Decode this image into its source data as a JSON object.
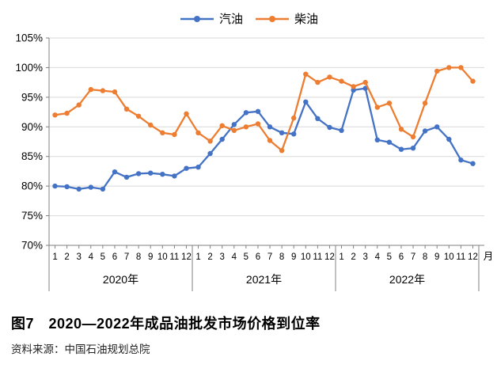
{
  "legend": {
    "items": [
      {
        "label": "汽油",
        "key": "gasoline"
      },
      {
        "label": "柴油",
        "key": "diesel"
      }
    ]
  },
  "chart_data": {
    "type": "line",
    "title": "图7　2020—2022年成品油批发市场价格到位率",
    "xlabel_unit": "月",
    "ylabel": "",
    "ylim": [
      70,
      105
    ],
    "y_step": 5,
    "grid": true,
    "legend_position": "top",
    "y_axis_tick_labels": [
      "105%",
      "100%",
      "95%",
      "90%",
      "85%",
      "80%",
      "75%",
      "70%"
    ],
    "x_axis": {
      "month_labels": [
        "1",
        "2",
        "3",
        "4",
        "5",
        "6",
        "7",
        "8",
        "9",
        "10",
        "11",
        "12"
      ],
      "year_labels": [
        "2020年",
        "2021年",
        "2022年"
      ],
      "unit_label": "月"
    },
    "categories": [
      "2020-1",
      "2020-2",
      "2020-3",
      "2020-4",
      "2020-5",
      "2020-6",
      "2020-7",
      "2020-8",
      "2020-9",
      "2020-10",
      "2020-11",
      "2020-12",
      "2021-1",
      "2021-2",
      "2021-3",
      "2021-4",
      "2021-5",
      "2021-6",
      "2021-7",
      "2021-8",
      "2021-9",
      "2021-10",
      "2021-11",
      "2021-12",
      "2022-1",
      "2022-2",
      "2022-3",
      "2022-4",
      "2022-5",
      "2022-6",
      "2022-7",
      "2022-8",
      "2022-9",
      "2022-10",
      "2022-11",
      "2022-12"
    ],
    "series": [
      {
        "name": "汽油",
        "key": "gasoline",
        "color": "#4472C4",
        "values": [
          80.0,
          79.9,
          79.5,
          79.8,
          79.5,
          82.4,
          81.5,
          82.1,
          82.2,
          82.0,
          81.7,
          83.0,
          83.2,
          85.5,
          87.9,
          90.4,
          92.4,
          92.6,
          90.0,
          89.0,
          88.8,
          94.2,
          91.4,
          89.9,
          89.4,
          96.2,
          96.5,
          87.8,
          87.4,
          86.2,
          86.4,
          89.3,
          90.0,
          87.9,
          84.4,
          83.8
        ]
      },
      {
        "name": "柴油",
        "key": "diesel",
        "color": "#ED7D31",
        "values": [
          92.0,
          92.3,
          93.7,
          96.3,
          96.1,
          95.9,
          93.0,
          91.8,
          90.3,
          89.0,
          88.7,
          92.2,
          89.0,
          87.6,
          90.2,
          89.4,
          90.0,
          90.5,
          87.7,
          86.0,
          91.5,
          98.9,
          97.5,
          98.4,
          97.7,
          96.8,
          97.5,
          93.3,
          94.0,
          89.6,
          88.3,
          94.0,
          99.4,
          100.0,
          100.0,
          97.7
        ]
      }
    ],
    "colors": {
      "grid": "#D9D9D9",
      "axis": "#808080",
      "text": "#000000"
    }
  },
  "caption": {
    "title": "图7　2020—2022年成品油批发市场价格到位率",
    "source": "资料来源：中国石油规划总院"
  }
}
